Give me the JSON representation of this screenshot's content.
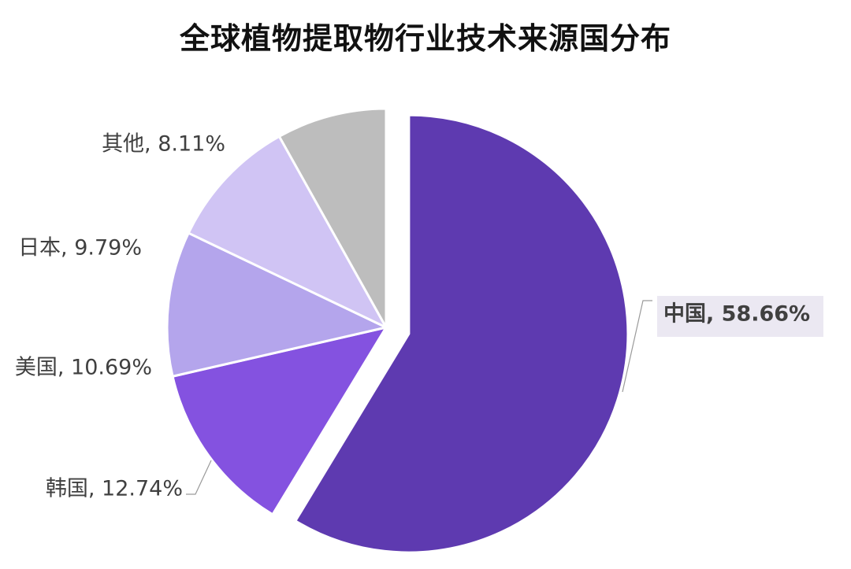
{
  "chart_data": {
    "type": "pie",
    "title": "全球植物提取物行业技术来源国分布",
    "slices": [
      {
        "name": "中国",
        "value": 58.66,
        "label": "中国, 58.66%",
        "color": "#5e3ab0",
        "exploded": true,
        "highlighted": true
      },
      {
        "name": "韩国",
        "value": 12.74,
        "label": "韩国, 12.74%",
        "color": "#8452e0"
      },
      {
        "name": "美国",
        "value": 10.69,
        "label": "美国, 10.69%",
        "color": "#b4a5ec"
      },
      {
        "name": "日本",
        "value": 9.79,
        "label": "日本, 9.79%",
        "color": "#d0c4f4"
      },
      {
        "name": "其他",
        "value": 8.11,
        "label": "其他, 8.11%",
        "color": "#bdbdbd"
      }
    ],
    "start_angle": "12 o'clock",
    "direction": "clockwise",
    "legend": "none",
    "label_style": "outside with leader lines",
    "highlight_label_background": "#ebe8f2",
    "highlight_label_color": "#5e3ab0"
  }
}
